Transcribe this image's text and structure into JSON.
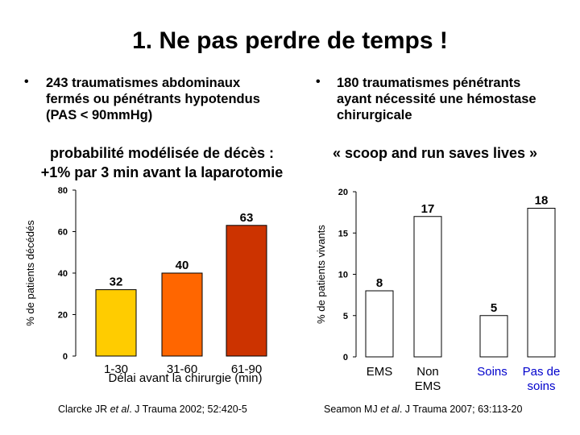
{
  "slide": {
    "title": "1.  Ne pas perdre de temps !",
    "left": {
      "bullet": "•",
      "bullet_lines": [
        "243 traumatismes abdominaux",
        "fermés ou pénétrants hypotendus",
        "(PAS < 90mmHg)"
      ],
      "subtitle_lines": [
        "probabilité modélisée de décès :",
        "+1% par 3 min avant la laparotomie"
      ],
      "reference_author": "Clarcke JR ",
      "reference_etal": "et al",
      "reference_rest": ". J Trauma 2002; 52:420-5"
    },
    "right": {
      "bullet": "•",
      "bullet_lines": [
        "180 traumatismes pénétrants",
        "ayant nécessité une hémostase",
        "chirurgicale"
      ],
      "subtitle": "« scoop and run saves lives »",
      "reference_author": "Seamon MJ ",
      "reference_etal": "et al",
      "reference_rest": ". J Trauma 2007; 63:113-20"
    }
  },
  "chart_data": [
    {
      "type": "bar",
      "categories": [
        "1-30",
        "31-60",
        "61-90"
      ],
      "values": [
        32,
        40,
        63
      ],
      "colors": [
        "#ffcc00",
        "#ff6600",
        "#cc3300"
      ],
      "ylim": [
        0,
        80
      ],
      "yticks": [
        "0",
        "20",
        "40",
        "60",
        "80"
      ],
      "ylabel": "% de patients décédés",
      "xlabel": "Délai avant la chirurgie (min)"
    },
    {
      "type": "bar",
      "categories": [
        "EMS",
        "Non EMS",
        "Soins",
        "Pas de soins"
      ],
      "category_lines": [
        [
          "EMS"
        ],
        [
          "Non",
          "EMS"
        ],
        [
          "Soins"
        ],
        [
          "Pas de",
          "soins"
        ]
      ],
      "category_colors": [
        "#000000",
        "#000000",
        "#0000cc",
        "#0000cc"
      ],
      "values": [
        8,
        17,
        5,
        18
      ],
      "colors": [
        "#ffffff",
        "#ffffff",
        "#ffffff",
        "#ffffff"
      ],
      "ylim": [
        0,
        20
      ],
      "yticks": [
        "0",
        "5",
        "10",
        "15",
        "20"
      ],
      "ylabel": "% de patients vivants"
    }
  ]
}
